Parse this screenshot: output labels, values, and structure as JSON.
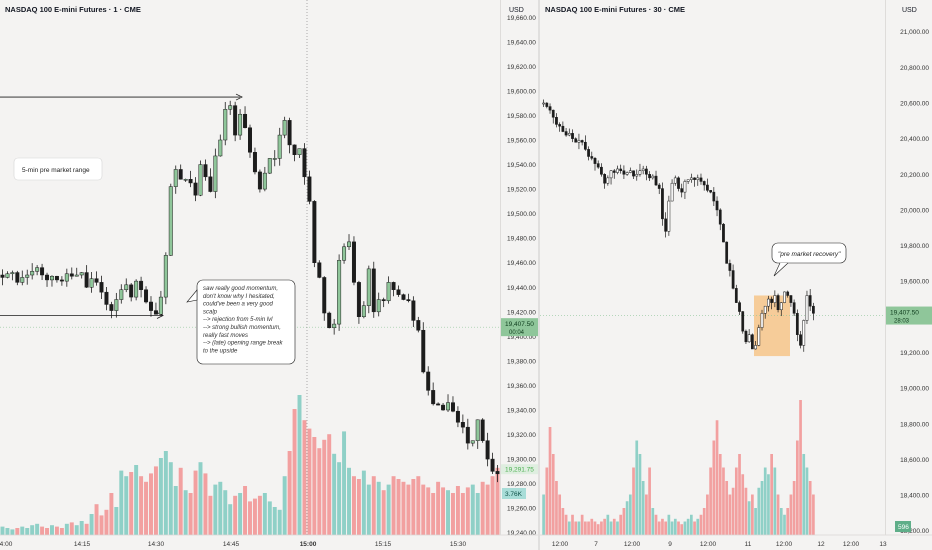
{
  "left_chart": {
    "title": "NASDAQ 100 E-mini Futures · 1 · CME",
    "currency": "USD",
    "y_ticks": [
      "19,660.00",
      "19,640.00",
      "19,620.00",
      "19,600.00",
      "19,580.00",
      "19,560.00",
      "19,540.00",
      "19,520.00",
      "19,500.00",
      "19,480.00",
      "19,460.00",
      "19,440.00",
      "19,420.00",
      "19,400.00",
      "19,380.00",
      "19,360.00",
      "19,340.00",
      "19,320.00",
      "19,300.00",
      "19,280.00",
      "19,260.00",
      "19,240.00"
    ],
    "x_ticks": [
      "4:00",
      "14:15",
      "14:30",
      "14:45",
      "15:00",
      "15:15",
      "15:30"
    ],
    "price_badge": {
      "price": "19,407.50",
      "countdown": "00:04",
      "color": "#8fc69a"
    },
    "low_badge": {
      "price": "19,291.75",
      "color": "#dfeee0"
    },
    "volume_badge": {
      "value": "3.76K",
      "color": "#a8ddd8"
    },
    "annotation_range": "5-min pre market range",
    "annotation_note": [
      "saw really good momentum,",
      "don't know why I hesitated,",
      "could've been a very good",
      "scalp",
      "--> rejection from 5-min lvl",
      "--> strong bullish momentum,",
      "really fast moves",
      "--> (late) opening range break",
      "to the upside"
    ]
  },
  "right_chart": {
    "title": "NASDAQ 100 E-mini Futures · 30 · CME",
    "currency": "USD",
    "y_ticks": [
      "21,000.00",
      "20,800.00",
      "20,600.00",
      "20,400.00",
      "20,200.00",
      "20,000.00",
      "19,800.00",
      "19,600.00",
      "19,400.00",
      "19,200.00",
      "19,000.00",
      "18,800.00",
      "18,600.00",
      "18,400.00",
      "18,200.00"
    ],
    "x_ticks": [
      "12:00",
      "7",
      "12:00",
      "9",
      "12:00",
      "11",
      "12:00",
      "12",
      "12:00",
      "13"
    ],
    "price_badge": {
      "price": "19,407.50",
      "countdown": "28:03",
      "color": "#8fc69a"
    },
    "volume_badge": {
      "value": "596",
      "color": "#5fae89"
    },
    "annotation": "\"pre market recovery\""
  },
  "colors": {
    "up": "#b9dcbd",
    "down": "#1c1c1c",
    "vol_up": "#8fd0c7",
    "vol_down": "#f2a0a0",
    "highlight": "#f6c48a"
  },
  "chart_data": [
    {
      "type": "candlestick",
      "title": "NASDAQ 100 E-mini Futures · 1 · CME",
      "timeframe": "1",
      "ylim": [
        19230,
        19670
      ],
      "x_ticks": [
        "4:00",
        "14:15",
        "14:30",
        "14:45",
        "15:00",
        "15:15",
        "15:30"
      ],
      "key_levels": [
        19595,
        19417
      ],
      "close": [
        19448,
        19451,
        19452,
        19444,
        19448,
        19450,
        19453,
        19456,
        19450,
        19446,
        19449,
        19446,
        19445,
        19451,
        19449,
        19450,
        19452,
        19440,
        19447,
        19444,
        19436,
        19426,
        19421,
        19430,
        19438,
        19442,
        19432,
        19445,
        19438,
        19428,
        19421,
        19418,
        19432,
        19466,
        19522,
        19536,
        19528,
        19528,
        19525,
        19515,
        19540,
        19530,
        19518,
        19547,
        19560,
        19585,
        19588,
        19564,
        19581,
        19570,
        19550,
        19534,
        19520,
        19533,
        19545,
        19545,
        19564,
        19576,
        19556,
        19548,
        19553,
        19530,
        19510,
        19460,
        19448,
        19419,
        19407,
        19410,
        19462,
        19473,
        19477,
        19444,
        19416,
        19425,
        19455,
        19420,
        19430,
        19429,
        19444,
        19438,
        19434,
        19430,
        19429,
        19413,
        19405,
        19371,
        19356,
        19345,
        19344,
        19340,
        19346,
        19339,
        19330,
        19326,
        19313,
        19315,
        19332,
        19315,
        19300,
        19290,
        19288
      ],
      "volume_relative": [
        0.06,
        0.05,
        0.04,
        0.05,
        0.06,
        0.05,
        0.07,
        0.08,
        0.06,
        0.05,
        0.07,
        0.06,
        0.05,
        0.08,
        0.09,
        0.07,
        0.1,
        0.08,
        0.15,
        0.22,
        0.14,
        0.18,
        0.3,
        0.2,
        0.46,
        0.42,
        0.45,
        0.5,
        0.42,
        0.38,
        0.44,
        0.49,
        0.55,
        0.6,
        0.52,
        0.35,
        0.48,
        0.32,
        0.3,
        0.46,
        0.52,
        0.44,
        0.28,
        0.36,
        0.38,
        0.32,
        0.22,
        0.28,
        0.3,
        0.35,
        0.24,
        0.26,
        0.28,
        0.3,
        0.24,
        0.2,
        0.18,
        0.42,
        0.6,
        0.9,
        1,
        0.82,
        0.76,
        0.7,
        0.62,
        0.68,
        0.72,
        0.58,
        0.52,
        0.74,
        0.48,
        0.42,
        0.4,
        0.46,
        0.36,
        0.42,
        0.38,
        0.32,
        0.36,
        0.42,
        0.4,
        0.38,
        0.36,
        0.4,
        0.42,
        0.36,
        0.34,
        0.3,
        0.38,
        0.34,
        0.32,
        0.3,
        0.35,
        0.3,
        0.34,
        0.36,
        0.3,
        0.38,
        0.36,
        0.42,
        0.48
      ]
    },
    {
      "type": "candlestick",
      "title": "NASDAQ 100 E-mini Futures · 30 · CME",
      "timeframe": "30",
      "ylim": [
        18120,
        21150
      ],
      "x_ticks": [
        "12:00",
        "7",
        "12:00",
        "9",
        "12:00",
        "11",
        "12:00",
        "12",
        "12:00",
        "13"
      ],
      "annotation": "\"pre market recovery\"",
      "close": [
        20600,
        20580,
        20560,
        20520,
        20480,
        20470,
        20440,
        20420,
        20430,
        20400,
        20380,
        20390,
        20380,
        20340,
        20300,
        20290,
        20260,
        20240,
        20200,
        20150,
        20180,
        20220,
        20210,
        20230,
        20220,
        20200,
        20210,
        20220,
        20190,
        20200,
        20220,
        20230,
        20200,
        20180,
        20190,
        20140,
        20120,
        19950,
        19880,
        20050,
        20150,
        20180,
        20120,
        20100,
        20160,
        20170,
        20180,
        20170,
        20180,
        20160,
        20140,
        20110,
        20100,
        20050,
        20000,
        19920,
        19820,
        19700,
        19660,
        19560,
        19480,
        19430,
        19320,
        19260,
        19300,
        19220,
        19240,
        19340,
        19420,
        19460,
        19500,
        19480,
        19520,
        19440,
        19480,
        19540,
        19520,
        19480,
        19420,
        19300,
        19240,
        19380,
        19520,
        19460,
        19420
      ],
      "volume_relative": [
        0.3,
        0.5,
        0.8,
        0.6,
        0.4,
        0.3,
        0.2,
        0.15,
        0.1,
        0.15,
        0.1,
        0.1,
        0.15,
        0.1,
        0.1,
        0.12,
        0.1,
        0.08,
        0.1,
        0.12,
        0.15,
        0.1,
        0.12,
        0.1,
        0.15,
        0.2,
        0.25,
        0.3,
        0.5,
        0.7,
        0.6,
        0.4,
        0.3,
        0.5,
        0.2,
        0.15,
        0.1,
        0.12,
        0.1,
        0.15,
        0.1,
        0.12,
        0.1,
        0.08,
        0.1,
        0.12,
        0.15,
        0.1,
        0.12,
        0.15,
        0.2,
        0.3,
        0.5,
        0.7,
        0.85,
        0.6,
        0.5,
        0.4,
        0.3,
        0.35,
        0.5,
        0.6,
        0.45,
        0.35,
        0.25,
        0.3,
        0.2,
        0.35,
        0.4,
        0.5,
        0.45,
        0.6,
        0.5,
        0.3,
        0.2,
        0.15,
        0.2,
        0.3,
        0.4,
        0.7,
        1,
        0.6,
        0.5,
        0.4,
        0.3
      ]
    }
  ]
}
